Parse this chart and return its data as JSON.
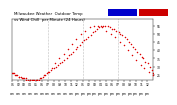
{
  "bg_color": "#ffffff",
  "plot_bg_color": "#ffffff",
  "legend_blue_color": "#0000cc",
  "legend_red_color": "#cc0000",
  "dot_color": "#dd0000",
  "grid_color": "#aaaaaa",
  "tick_fontsize": 2.2,
  "title_fontsize": 2.8,
  "ylim_min": 22,
  "ylim_max": 59,
  "y_ticks": [
    25,
    30,
    35,
    40,
    45,
    50,
    55
  ],
  "vlines": [
    360,
    720,
    1080
  ],
  "x_tick_positions": [
    0,
    60,
    120,
    180,
    240,
    300,
    360,
    420,
    480,
    540,
    600,
    660,
    720,
    780,
    840,
    900,
    960,
    1020,
    1080,
    1140,
    1200,
    1260,
    1320,
    1380
  ],
  "x_tick_row1": [
    "01",
    "02",
    "03",
    "04",
    "05",
    "06",
    "07",
    "08",
    "09",
    "10",
    "11",
    "12",
    "01",
    "02",
    "03",
    "04",
    "05",
    "06",
    "07",
    "08",
    "09",
    "10",
    "11",
    "12"
  ],
  "x_tick_row2": [
    "am",
    "am",
    "am",
    "am",
    "am",
    "am",
    "am",
    "am",
    "am",
    "am",
    "am",
    "pm",
    "pm",
    "pm",
    "pm",
    "pm",
    "pm",
    "pm",
    "pm",
    "pm",
    "pm",
    "pm",
    "pm",
    "pm"
  ],
  "scatter_x": [
    0,
    15,
    30,
    45,
    65,
    85,
    100,
    115,
    135,
    160,
    180,
    200,
    220,
    240,
    255,
    275,
    290,
    310,
    330,
    355,
    375,
    395,
    420,
    445,
    465,
    490,
    510,
    530,
    555,
    575,
    600,
    620,
    645,
    665,
    690,
    710,
    730,
    755,
    775,
    800,
    820,
    845,
    865,
    885,
    910,
    930,
    950,
    975,
    995,
    1015,
    1040,
    1060,
    1085,
    1105,
    1125,
    1150,
    1170,
    1190,
    1210,
    1235,
    1255,
    1275,
    1300,
    1320,
    1340,
    1360,
    1385,
    1405,
    1425,
    1440
  ],
  "scatter_y": [
    26,
    26,
    25,
    25,
    24,
    24,
    23,
    23,
    23,
    22,
    22,
    22,
    22,
    22,
    22,
    22,
    23,
    24,
    25,
    26,
    27,
    28,
    29,
    30,
    31,
    32,
    33,
    34,
    35,
    37,
    38,
    39,
    41,
    42,
    43,
    45,
    46,
    47,
    48,
    49,
    51,
    52,
    53,
    54,
    55,
    55,
    55,
    55,
    54,
    53,
    53,
    52,
    51,
    50,
    49,
    48,
    47,
    45,
    44,
    42,
    41,
    39,
    38,
    36,
    35,
    33,
    32,
    30,
    28,
    26
  ],
  "scatter_x2": [
    10,
    40,
    70,
    105,
    140,
    175,
    210,
    250,
    285,
    320,
    360,
    400,
    440,
    480,
    525,
    565,
    610,
    655,
    700,
    745,
    790,
    835,
    880,
    920,
    960,
    1005,
    1050,
    1095,
    1140,
    1180,
    1225,
    1265,
    1310,
    1350,
    1395,
    1440
  ],
  "scatter_y2": [
    26,
    25,
    24,
    23,
    22,
    22,
    22,
    22,
    23,
    25,
    27,
    29,
    32,
    35,
    38,
    41,
    44,
    47,
    50,
    52,
    54,
    55,
    55,
    54,
    52,
    50,
    48,
    45,
    43,
    40,
    37,
    34,
    31,
    29,
    27,
    25
  ]
}
